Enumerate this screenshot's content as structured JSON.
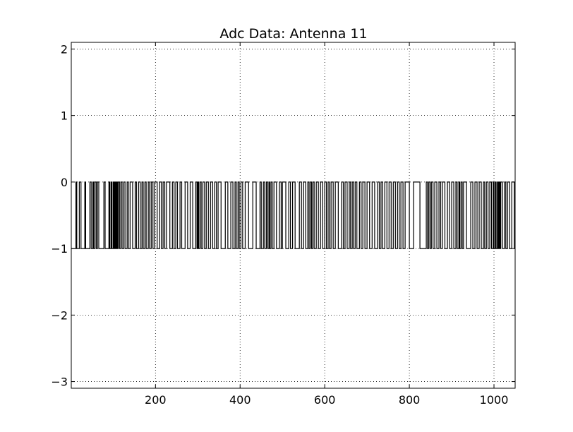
{
  "chart_data": {
    "type": "line",
    "title": "Adc Data: Antenna 11",
    "xlabel": "",
    "ylabel": "",
    "xlim": [
      1,
      1050
    ],
    "ylim": [
      -3.1,
      2.1
    ],
    "xticks": [
      200,
      400,
      600,
      800,
      1000
    ],
    "xtick_labels": [
      "200",
      "400",
      "600",
      "800",
      "1000"
    ],
    "yticks": [
      2,
      1,
      0,
      -1,
      -2,
      -3
    ],
    "ytick_labels": [
      "2",
      "1",
      "0",
      "−1",
      "−2",
      "−3"
    ],
    "grid": true,
    "line_color": "#000000",
    "series": [
      {
        "values_description_free": true,
        "x_start": 1,
        "transitions_to_zero": [
          12,
          20,
          33,
          45,
          52,
          57,
          63,
          78,
          90,
          95,
          100,
          104,
          108,
          112,
          118,
          125,
          133,
          140,
          152,
          160,
          168,
          175,
          183,
          190,
          198,
          210,
          218,
          226,
          240,
          248,
          258,
          270,
          282,
          295,
          300,
          305,
          312,
          320,
          330,
          340,
          348,
          365,
          378,
          388,
          395,
          402,
          412,
          430,
          447,
          455,
          462,
          468,
          473,
          480,
          493,
          500,
          515,
          524,
          540,
          550,
          560,
          566,
          572,
          580,
          590,
          600,
          608,
          615,
          625,
          640,
          648,
          658,
          665,
          672,
          682,
          690,
          700,
          712,
          725,
          733,
          742,
          752,
          762,
          772,
          780,
          790,
          810,
          840,
          846,
          852,
          860,
          870,
          878,
          890,
          900,
          910,
          917,
          922,
          928,
          945,
          955,
          965,
          975,
          982,
          990,
          998,
          1003,
          1008,
          1012,
          1016,
          1025,
          1032,
          1042
        ],
        "transitions_to_minus_one": [
          14,
          24,
          35,
          48,
          54,
          60,
          66,
          81,
          92,
          97,
          102,
          106,
          110,
          115,
          121,
          128,
          136,
          146,
          155,
          164,
          171,
          178,
          186,
          194,
          204,
          214,
          222,
          234,
          244,
          252,
          262,
          276,
          288,
          298,
          302,
          308,
          316,
          325,
          335,
          344,
          355,
          371,
          383,
          391,
          398,
          406,
          420,
          438,
          450,
          458,
          465,
          470,
          476,
          486,
          497,
          508,
          519,
          530,
          545,
          555,
          563,
          569,
          575,
          585,
          595,
          604,
          611,
          620,
          632,
          644,
          653,
          661,
          668,
          676,
          686,
          695,
          706,
          718,
          729,
          737,
          747,
          757,
          767,
          776,
          785,
          800,
          825,
          843,
          849,
          856,
          865,
          874,
          884,
          895,
          905,
          913,
          919,
          925,
          935,
          950,
          960,
          970,
          978,
          986,
          994,
          1000,
          1005,
          1010,
          1014,
          1020,
          1028,
          1037,
          1048
        ]
      }
    ]
  }
}
